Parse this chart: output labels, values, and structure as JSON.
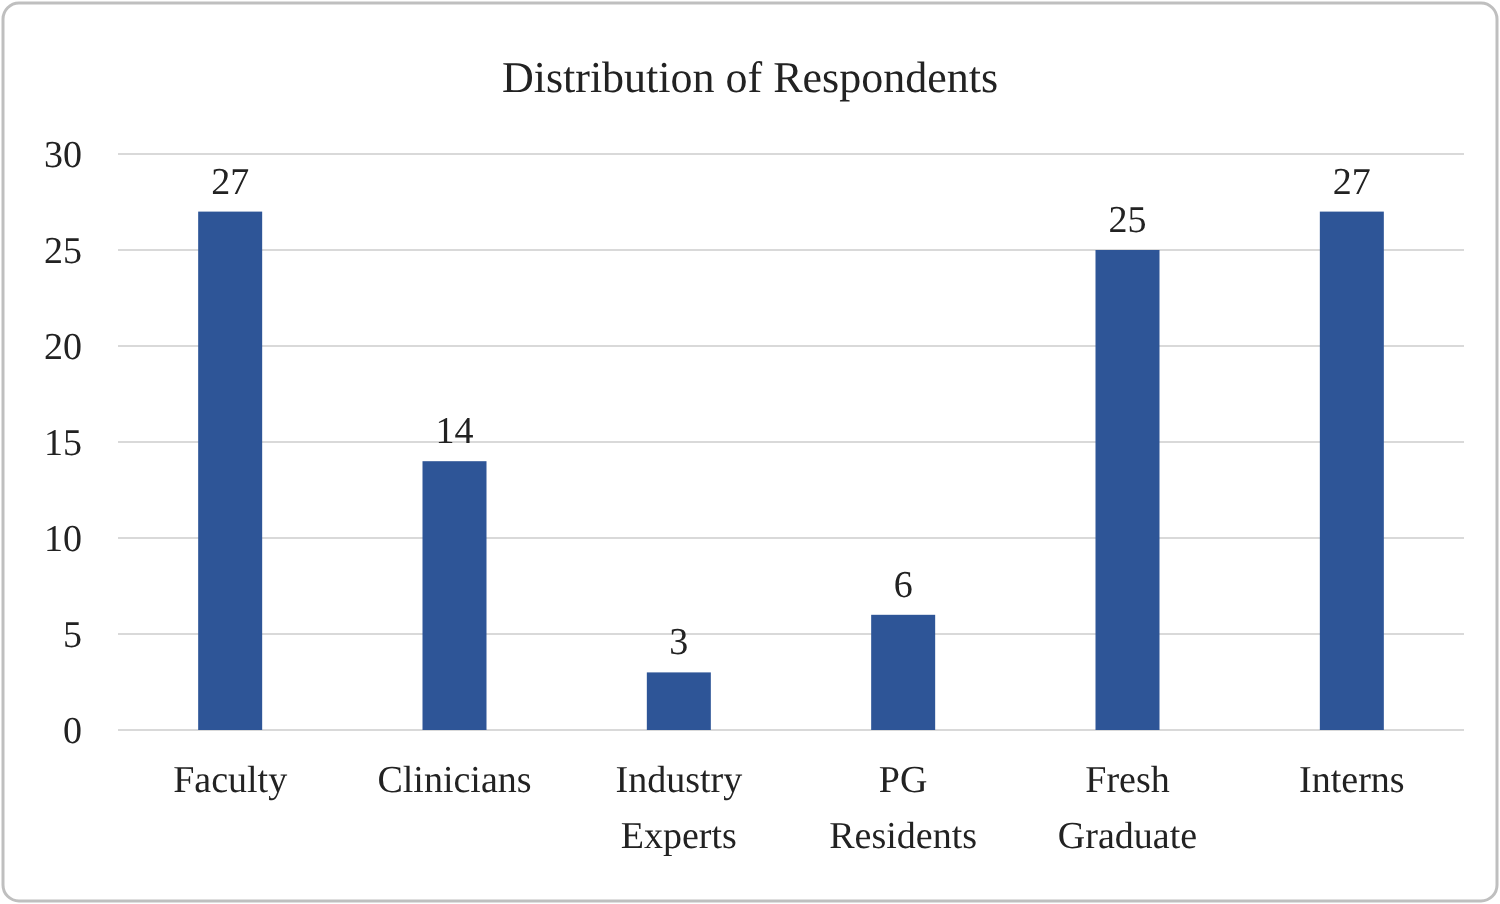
{
  "chart_data": {
    "type": "bar",
    "title": "Distribution of Respondents",
    "categories": [
      "Faculty",
      "Clinicians",
      "Industry Experts",
      "PG Residents",
      "Fresh Graduate",
      "Interns"
    ],
    "values": [
      27,
      14,
      3,
      6,
      25,
      27
    ],
    "color": "#2e5597",
    "ylim": [
      0,
      30
    ],
    "yticks": [
      0,
      5,
      10,
      15,
      20,
      25,
      30
    ],
    "grid": "y",
    "data_labels": true
  }
}
